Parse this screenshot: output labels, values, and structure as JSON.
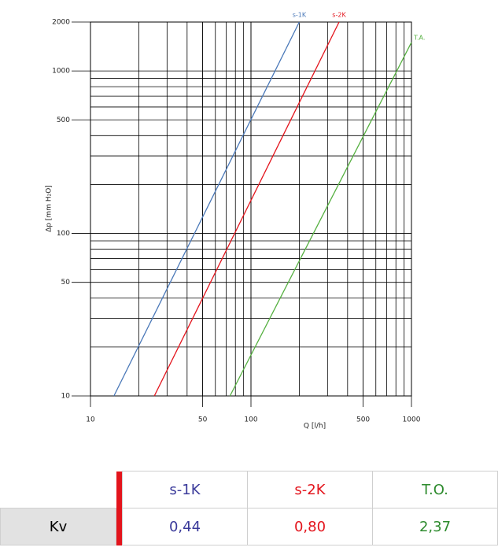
{
  "chart_data": {
    "type": "line",
    "x_label": "Q [l/h]",
    "y_label": "Δp [mm H₂O]",
    "xscale": "log",
    "yscale": "log",
    "grid": true,
    "xlim": [
      10,
      1000
    ],
    "ylim": [
      10,
      2000
    ],
    "xticks": [
      10,
      50,
      100,
      500,
      1000
    ],
    "yticks": [
      10,
      50,
      100,
      500,
      1000,
      2000
    ],
    "series": [
      {
        "name": "s-1K",
        "color": "#4a78b8",
        "x": [
          14,
          200
        ],
        "values": [
          10,
          2000
        ]
      },
      {
        "name": "s-2K",
        "color": "#e3141c",
        "x": [
          25,
          354
        ],
        "values": [
          10,
          2000
        ]
      },
      {
        "name": "T.A.",
        "color": "#55b040",
        "x": [
          74,
          1000
        ],
        "values": [
          10,
          1500
        ]
      }
    ]
  },
  "table": {
    "header": [
      "s-1K",
      "s-2K",
      "T.O."
    ],
    "header_colors": [
      "#3a3a9a",
      "#e3141c",
      "#2e8b2e"
    ],
    "rows": [
      [
        "Kv",
        "0,44",
        "0,80",
        "2,37"
      ]
    ]
  }
}
